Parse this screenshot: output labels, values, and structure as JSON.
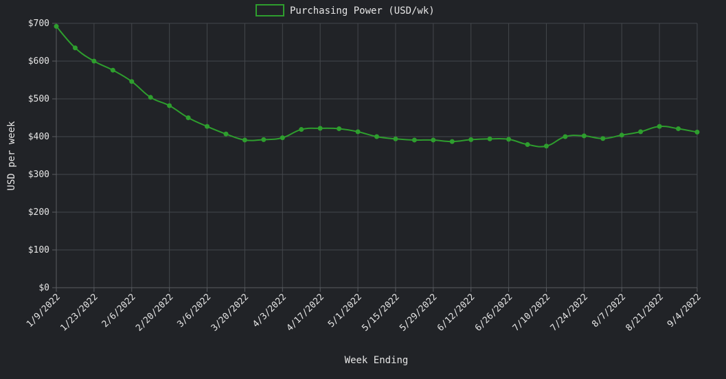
{
  "chart_data": {
    "type": "line",
    "title": "",
    "xlabel": "Week Ending",
    "ylabel": "USD per week",
    "legend": {
      "position": "top-center"
    },
    "grid": true,
    "ylim": [
      0,
      700
    ],
    "yticks": [
      0,
      100,
      200,
      300,
      400,
      500,
      600,
      700
    ],
    "ytick_labels": [
      "$0",
      "$100",
      "$200",
      "$300",
      "$400",
      "$500",
      "$600",
      "$700"
    ],
    "x": [
      "1/9/2022",
      "1/16/2022",
      "1/23/2022",
      "1/30/2022",
      "2/6/2022",
      "2/13/2022",
      "2/20/2022",
      "2/27/2022",
      "3/6/2022",
      "3/13/2022",
      "3/20/2022",
      "3/27/2022",
      "4/3/2022",
      "4/10/2022",
      "4/17/2022",
      "4/24/2022",
      "5/1/2022",
      "5/8/2022",
      "5/15/2022",
      "5/22/2022",
      "5/29/2022",
      "6/5/2022",
      "6/12/2022",
      "6/19/2022",
      "6/26/2022",
      "7/3/2022",
      "7/10/2022",
      "7/17/2022",
      "7/24/2022",
      "7/31/2022",
      "8/7/2022",
      "8/14/2022",
      "8/21/2022",
      "8/28/2022",
      "9/4/2022"
    ],
    "xtick_labels": [
      "1/9/2022",
      "1/23/2022",
      "2/6/2022",
      "2/20/2022",
      "3/6/2022",
      "3/20/2022",
      "4/3/2022",
      "4/17/2022",
      "5/1/2022",
      "5/15/2022",
      "5/29/2022",
      "6/12/2022",
      "6/26/2022",
      "7/10/2022",
      "7/24/2022",
      "8/7/2022",
      "8/21/2022",
      "9/4/2022"
    ],
    "series": [
      {
        "name": "Purchasing Power (USD/wk)",
        "color": "#2e9e2e",
        "values": [
          692,
          635,
          600,
          576,
          546,
          504,
          482,
          450,
          427,
          407,
          391,
          392,
          397,
          419,
          422,
          421,
          413,
          400,
          394,
          391,
          391,
          387,
          392,
          394,
          393,
          379,
          375,
          400,
          402,
          395,
          404,
          413,
          427,
          421,
          412
        ]
      }
    ]
  }
}
